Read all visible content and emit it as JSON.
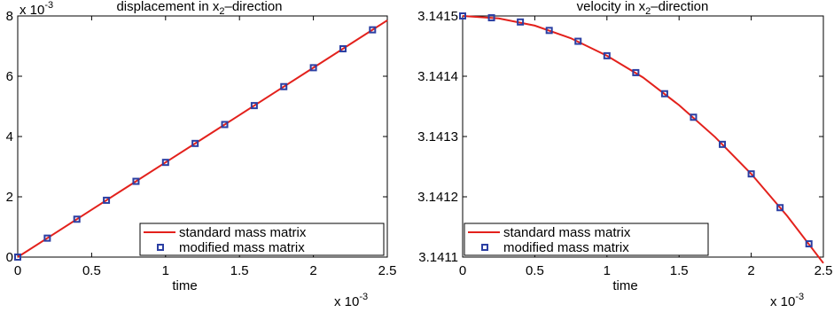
{
  "chart_data": [
    {
      "type": "line",
      "title": [
        "displacement in x",
        "2",
        "–direction"
      ],
      "xlabel": "time",
      "x_multiplier": [
        "x 10",
        "-3"
      ],
      "y_multiplier": [
        "x 10",
        "-3"
      ],
      "xlim": [
        0,
        2.5
      ],
      "xticks": [
        0,
        0.5,
        1,
        1.5,
        2,
        2.5
      ],
      "ylim": [
        0,
        8
      ],
      "yticks": [
        0,
        2,
        4,
        6,
        8
      ],
      "legend": "lower right",
      "series": [
        {
          "name": "standard mass matrix",
          "color": "#e3211c",
          "marker": "none",
          "x": [
            0,
            0.25,
            0.5,
            0.75,
            1,
            1.25,
            1.5,
            1.75,
            2,
            2.25,
            2.5
          ],
          "values": [
            0,
            0.785,
            1.571,
            2.356,
            3.142,
            3.927,
            4.712,
            5.498,
            6.283,
            7.069,
            7.854
          ]
        },
        {
          "name": "modified mass matrix",
          "color": "#2b3fa3",
          "marker": "square",
          "x": [
            0,
            0.2,
            0.4,
            0.6,
            0.8,
            1,
            1.2,
            1.4,
            1.6,
            1.8,
            2,
            2.2,
            2.4
          ],
          "values": [
            0,
            0.628,
            1.257,
            1.885,
            2.513,
            3.142,
            3.77,
            4.398,
            5.026,
            5.655,
            6.283,
            6.911,
            7.54
          ]
        }
      ]
    },
    {
      "type": "line",
      "title": [
        "velocity in x",
        "2",
        "–direction"
      ],
      "xlabel": "time",
      "x_multiplier": [
        "x 10",
        "-3"
      ],
      "xlim": [
        0,
        2.5
      ],
      "xticks": [
        0,
        0.5,
        1,
        1.5,
        2,
        2.5
      ],
      "ylim": [
        3.1411,
        3.1415
      ],
      "yticks": [
        3.1411,
        3.1412,
        3.1413,
        3.1414,
        3.1415
      ],
      "legend": "lower left",
      "series": [
        {
          "name": "standard mass matrix",
          "color": "#e3211c",
          "marker": "none",
          "x": [
            0,
            0.25,
            0.5,
            0.75,
            1,
            1.25,
            1.5,
            1.75,
            2,
            2.25,
            2.5
          ],
          "values": [
            3.1415,
            3.141496,
            3.141484,
            3.141463,
            3.141434,
            3.141398,
            3.141352,
            3.141299,
            3.141238,
            3.141168,
            3.14109
          ]
        },
        {
          "name": "modified mass matrix",
          "color": "#2b3fa3",
          "marker": "square",
          "x": [
            0,
            0.2,
            0.4,
            0.6,
            0.8,
            1,
            1.2,
            1.4,
            1.6,
            1.8,
            2,
            2.2,
            2.4
          ],
          "values": [
            3.1415,
            3.141497,
            3.14149,
            3.141476,
            3.141458,
            3.141434,
            3.141406,
            3.141371,
            3.141332,
            3.141287,
            3.141238,
            3.141182,
            3.141122
          ]
        }
      ]
    }
  ]
}
